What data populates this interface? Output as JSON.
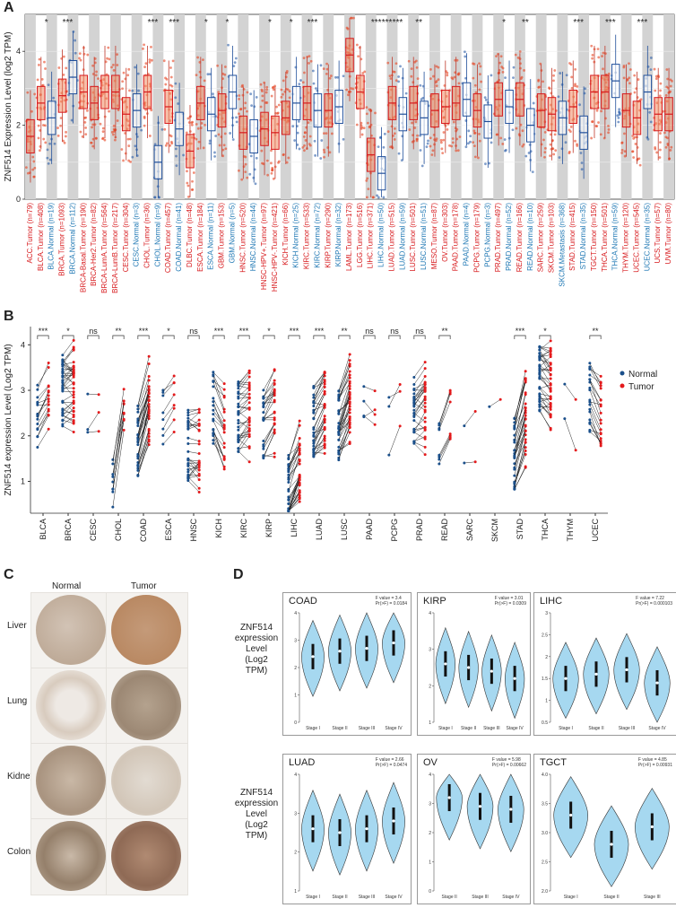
{
  "panels": {
    "a": "A",
    "b": "B",
    "c": "C",
    "d": "D"
  },
  "panel_a": {
    "y_label": "ZNF514 Expression Level (log2 TPM)",
    "y_ticks": [
      "0",
      "2",
      "4"
    ],
    "labels": [
      {
        "t": "ACC.Tumor (n=79)",
        "c": "#d7191c",
        "m": 1.7,
        "s": ""
      },
      {
        "t": "BLCA.Tumor (n=408)",
        "c": "#d7191c",
        "m": 2.6,
        "s": ""
      },
      {
        "t": "BLCA.Normal (n=19)",
        "c": "#1f78b4",
        "m": 2.2,
        "s": "*"
      },
      {
        "t": "BRCA.Tumor (n=1093)",
        "c": "#d7191c",
        "m": 2.8,
        "s": ""
      },
      {
        "t": "BRCA.Normal (n=112)",
        "c": "#1f78b4",
        "m": 3.3,
        "s": "***"
      },
      {
        "t": "BRCA-Basal.Tumor (n=190)",
        "c": "#d7191c",
        "m": 2.9,
        "s": ""
      },
      {
        "t": "BRCA-Her2.Tumor (n=82)",
        "c": "#d7191c",
        "m": 2.6,
        "s": ""
      },
      {
        "t": "BRCA-LumA.Tumor (n=564)",
        "c": "#d7191c",
        "m": 2.9,
        "s": ""
      },
      {
        "t": "BRCA-LumB.Tumor (n=217)",
        "c": "#d7191c",
        "m": 2.9,
        "s": ""
      },
      {
        "t": "CESC.Tumor (n=304)",
        "c": "#d7191c",
        "m": 2.3,
        "s": ""
      },
      {
        "t": "CESC.Normal (n=3)",
        "c": "#1f78b4",
        "m": 2.4,
        "s": ""
      },
      {
        "t": "CHOL.Tumor (n=36)",
        "c": "#d7191c",
        "m": 2.9,
        "s": ""
      },
      {
        "t": "CHOL.Normal (n=9)",
        "c": "#1f78b4",
        "m": 1.0,
        "s": "***"
      },
      {
        "t": "COAD.Tumor (n=457)",
        "c": "#d7191c",
        "m": 2.5,
        "s": ""
      },
      {
        "t": "COAD.Normal (n=41)",
        "c": "#1f78b4",
        "m": 1.9,
        "s": "***"
      },
      {
        "t": "DLBC.Tumor (n=48)",
        "c": "#d7191c",
        "m": 1.3,
        "s": ""
      },
      {
        "t": "ESCA.Tumor (n=184)",
        "c": "#d7191c",
        "m": 2.6,
        "s": ""
      },
      {
        "t": "ESCA.Normal (n=11)",
        "c": "#1f78b4",
        "m": 2.3,
        "s": "*"
      },
      {
        "t": "GBM.Tumor (n=153)",
        "c": "#d7191c",
        "m": 2.4,
        "s": ""
      },
      {
        "t": "GBM.Normal (n=5)",
        "c": "#1f78b4",
        "m": 2.9,
        "s": "*"
      },
      {
        "t": "HNSC.Tumor (n=520)",
        "c": "#d7191c",
        "m": 1.8,
        "s": ""
      },
      {
        "t": "HNSC.Normal (n=44)",
        "c": "#1f78b4",
        "m": 1.7,
        "s": ""
      },
      {
        "t": "HNSC-HPV+.Tumor (n=97)",
        "c": "#d7191c",
        "m": 1.9,
        "s": ""
      },
      {
        "t": "HNSC-HPV-.Tumor (n=421)",
        "c": "#d7191c",
        "m": 1.8,
        "s": "*"
      },
      {
        "t": "KICH.Tumor (n=66)",
        "c": "#d7191c",
        "m": 2.2,
        "s": ""
      },
      {
        "t": "KICH.Normal (n=25)",
        "c": "#1f78b4",
        "m": 2.6,
        "s": "*"
      },
      {
        "t": "KIRC.Tumor (n=533)",
        "c": "#d7191c",
        "m": 2.6,
        "s": ""
      },
      {
        "t": "KIRC.Normal (n=72)",
        "c": "#1f78b4",
        "m": 2.4,
        "s": "***"
      },
      {
        "t": "KIRP.Tumor (n=290)",
        "c": "#d7191c",
        "m": 2.4,
        "s": ""
      },
      {
        "t": "KIRP.Normal (n=32)",
        "c": "#1f78b4",
        "m": 2.5,
        "s": ""
      },
      {
        "t": "LAML.Tumor (n=173)",
        "c": "#d7191c",
        "m": 3.9,
        "s": ""
      },
      {
        "t": "LGG.Tumor (n=516)",
        "c": "#d7191c",
        "m": 2.9,
        "s": ""
      },
      {
        "t": "LIHC.Tumor (n=371)",
        "c": "#d7191c",
        "m": 1.2,
        "s": ""
      },
      {
        "t": "LIHC.Normal (n=50)",
        "c": "#1f78b4",
        "m": 0.7,
        "s": "***"
      },
      {
        "t": "LUAD.Tumor (n=515)",
        "c": "#d7191c",
        "m": 2.6,
        "s": "***"
      },
      {
        "t": "LUAD.Normal (n=59)",
        "c": "#1f78b4",
        "m": 2.3,
        "s": "***"
      },
      {
        "t": "LUSC.Tumor (n=501)",
        "c": "#d7191c",
        "m": 2.6,
        "s": ""
      },
      {
        "t": "LUSC.Normal (n=51)",
        "c": "#1f78b4",
        "m": 2.2,
        "s": "**"
      },
      {
        "t": "MESO.Tumor (n=87)",
        "c": "#d7191c",
        "m": 2.4,
        "s": ""
      },
      {
        "t": "OV.Tumor (n=303)",
        "c": "#d7191c",
        "m": 2.5,
        "s": ""
      },
      {
        "t": "PAAD.Tumor (n=178)",
        "c": "#d7191c",
        "m": 2.6,
        "s": ""
      },
      {
        "t": "PAAD.Normal (n=4)",
        "c": "#1f78b4",
        "m": 2.7,
        "s": ""
      },
      {
        "t": "PCPG.Tumor (n=179)",
        "c": "#d7191c",
        "m": 2.4,
        "s": ""
      },
      {
        "t": "PCPG.Normal (n=3)",
        "c": "#1f78b4",
        "m": 2.1,
        "s": ""
      },
      {
        "t": "PRAD.Tumor (n=497)",
        "c": "#d7191c",
        "m": 2.7,
        "s": ""
      },
      {
        "t": "PRAD.Normal (n=52)",
        "c": "#1f78b4",
        "m": 2.5,
        "s": "*"
      },
      {
        "t": "READ.Tumor (n=166)",
        "c": "#d7191c",
        "m": 2.7,
        "s": ""
      },
      {
        "t": "READ.Normal (n=10)",
        "c": "#1f78b4",
        "m": 2.0,
        "s": "**"
      },
      {
        "t": "SARC.Tumor (n=259)",
        "c": "#d7191c",
        "m": 2.4,
        "s": ""
      },
      {
        "t": "SKCM.Tumor (n=103)",
        "c": "#d7191c",
        "m": 2.3,
        "s": ""
      },
      {
        "t": "SKCM.Metastasis (n=368)",
        "c": "#1f78b4",
        "m": 2.2,
        "s": ""
      },
      {
        "t": "STAD.Tumor (n=415)",
        "c": "#d7191c",
        "m": 2.5,
        "s": ""
      },
      {
        "t": "STAD.Normal (n=35)",
        "c": "#1f78b4",
        "m": 1.8,
        "s": "***"
      },
      {
        "t": "TGCT.Tumor (n=150)",
        "c": "#d7191c",
        "m": 2.9,
        "s": ""
      },
      {
        "t": "THCA.Tumor (n=501)",
        "c": "#d7191c",
        "m": 2.9,
        "s": ""
      },
      {
        "t": "THCA.Normal (n=59)",
        "c": "#1f78b4",
        "m": 3.2,
        "s": "***"
      },
      {
        "t": "THYM.Tumor (n=120)",
        "c": "#d7191c",
        "m": 2.4,
        "s": ""
      },
      {
        "t": "UCEC.Tumor (n=545)",
        "c": "#d7191c",
        "m": 2.2,
        "s": ""
      },
      {
        "t": "UCEC.Normal (n=35)",
        "c": "#1f78b4",
        "m": 2.9,
        "s": "***"
      },
      {
        "t": "UCS.Tumor (n=57)",
        "c": "#d7191c",
        "m": 2.3,
        "s": ""
      },
      {
        "t": "UVM.Tumor (n=80)",
        "c": "#d7191c",
        "m": 2.3,
        "s": ""
      }
    ]
  },
  "panel_b": {
    "y_label": "ZNF514 expression Level (Log2 TPM)",
    "y_ticks": [
      "1",
      "2",
      "3",
      "4"
    ],
    "legend": {
      "normal": "Normal",
      "tumor": "Tumor",
      "normal_color": "#1a4f8a",
      "tumor_color": "#e41a1c"
    },
    "groups": [
      {
        "n": "BLCA",
        "s": "***",
        "nm": 2.5,
        "tm": 2.8,
        "k": 16
      },
      {
        "n": "BRCA",
        "s": "*",
        "nm": 3.0,
        "tm": 3.0,
        "k": 40
      },
      {
        "n": "CESC",
        "s": "ns",
        "nm": 2.4,
        "tm": 2.7,
        "k": 3
      },
      {
        "n": "CHOL",
        "s": "**",
        "nm": 1.1,
        "tm": 2.6,
        "k": 9
      },
      {
        "n": "COAD",
        "s": "***",
        "nm": 1.9,
        "tm": 2.7,
        "k": 30
      },
      {
        "n": "ESCA",
        "s": "*",
        "nm": 2.3,
        "tm": 2.7,
        "k": 8
      },
      {
        "n": "HNSC",
        "s": "ns",
        "nm": 1.8,
        "tm": 1.8,
        "k": 30
      },
      {
        "n": "KICH",
        "s": "***",
        "nm": 2.6,
        "tm": 2.2,
        "k": 20
      },
      {
        "n": "KIRC",
        "s": "***",
        "nm": 2.4,
        "tm": 2.5,
        "k": 35
      },
      {
        "n": "KIRP",
        "s": "*",
        "nm": 2.3,
        "tm": 2.6,
        "k": 25
      },
      {
        "n": "LIHC",
        "s": "***",
        "nm": 0.8,
        "tm": 1.3,
        "k": 35
      },
      {
        "n": "LUAD",
        "s": "***",
        "nm": 2.3,
        "tm": 2.6,
        "k": 35
      },
      {
        "n": "LUSC",
        "s": "**",
        "nm": 2.2,
        "tm": 2.7,
        "k": 35
      },
      {
        "n": "PAAD",
        "s": "ns",
        "nm": 2.9,
        "tm": 2.9,
        "k": 4
      },
      {
        "n": "PCPG",
        "s": "ns",
        "nm": 2.1,
        "tm": 2.4,
        "k": 3
      },
      {
        "n": "PRAD",
        "s": "ns",
        "nm": 2.6,
        "tm": 2.7,
        "k": 30
      },
      {
        "n": "READ",
        "s": "**",
        "nm": 2.0,
        "tm": 2.7,
        "k": 8
      },
      {
        "n": "SARC",
        "s": "",
        "nm": 1.9,
        "tm": 2.1,
        "k": 2
      },
      {
        "n": "SKCM",
        "s": "",
        "nm": 2.0,
        "tm": 2.4,
        "k": 1
      },
      {
        "n": "STAD",
        "s": "***",
        "nm": 1.6,
        "tm": 2.4,
        "k": 30
      },
      {
        "n": "THCA",
        "s": "*",
        "nm": 3.2,
        "tm": 3.1,
        "k": 40
      },
      {
        "n": "THYM",
        "s": "",
        "nm": 2.5,
        "tm": 2.1,
        "k": 2
      },
      {
        "n": "UCEC",
        "s": "**",
        "nm": 2.8,
        "tm": 2.4,
        "k": 20
      }
    ]
  },
  "panel_c": {
    "col_normal": "Normal",
    "col_tumor": "Tumor",
    "rows": [
      "Liver",
      "Lung",
      "Kidney",
      "Colon"
    ]
  },
  "panel_d": {
    "y_label_l1": "ZNF514 expression",
    "y_label_l2": "Level",
    "y_label_l3": "(Log2 TPM)",
    "violins": [
      {
        "name": "COAD",
        "f": "F value = 3.4",
        "p": "Pr(>F) = 0.0184",
        "stages": [
          "Stage I",
          "Stage II",
          "Stage III",
          "Stage IV"
        ],
        "ticks": [
          "0",
          "1",
          "2",
          "3",
          "4"
        ],
        "med": [
          2.4,
          2.6,
          2.7,
          2.9
        ]
      },
      {
        "name": "KIRP",
        "f": "F value = 3.01",
        "p": "Pr(>F) = 0.0309",
        "stages": [
          "Stage I",
          "Stage II",
          "Stage III",
          "Stage IV"
        ],
        "ticks": [
          "1",
          "2",
          "3",
          "4"
        ],
        "med": [
          2.6,
          2.5,
          2.4,
          2.2
        ]
      },
      {
        "name": "LIHC",
        "f": "F value = 7.22",
        "p": "Pr(>F) = 0.000103",
        "stages": [
          "Stage I",
          "Stage II",
          "Stage III",
          "Stage IV"
        ],
        "ticks": [
          "0.5",
          "1",
          "1.5",
          "2",
          "2.5",
          "3"
        ],
        "med": [
          1.5,
          1.6,
          1.7,
          1.4
        ]
      },
      {
        "name": "LUAD",
        "f": "F value = 2.66",
        "p": "Pr(>F) = 0.0474",
        "stages": [
          "Stage I",
          "Stage II",
          "Stage III",
          "Stage IV"
        ],
        "ticks": [
          "1",
          "2",
          "3",
          "4"
        ],
        "med": [
          2.6,
          2.5,
          2.6,
          2.8
        ]
      },
      {
        "name": "OV",
        "f": "F value = 5.98",
        "p": "Pr(>F) = 0.00662",
        "stages": [
          "Stage II",
          "Stage III",
          "Stage IV"
        ],
        "ticks": [
          "0",
          "1",
          "2",
          "3",
          "4"
        ],
        "med": [
          3.2,
          2.9,
          2.8
        ]
      },
      {
        "name": "TGCT",
        "f": "F value = 4.85",
        "p": "Pr(>F) = 0.00931",
        "stages": [
          "Stage I",
          "Stage II",
          "Stage III"
        ],
        "ticks": [
          "2.0",
          "2.5",
          "3.0",
          "3.5",
          "4.0"
        ],
        "med": [
          3.3,
          2.8,
          3.1
        ]
      }
    ]
  }
}
